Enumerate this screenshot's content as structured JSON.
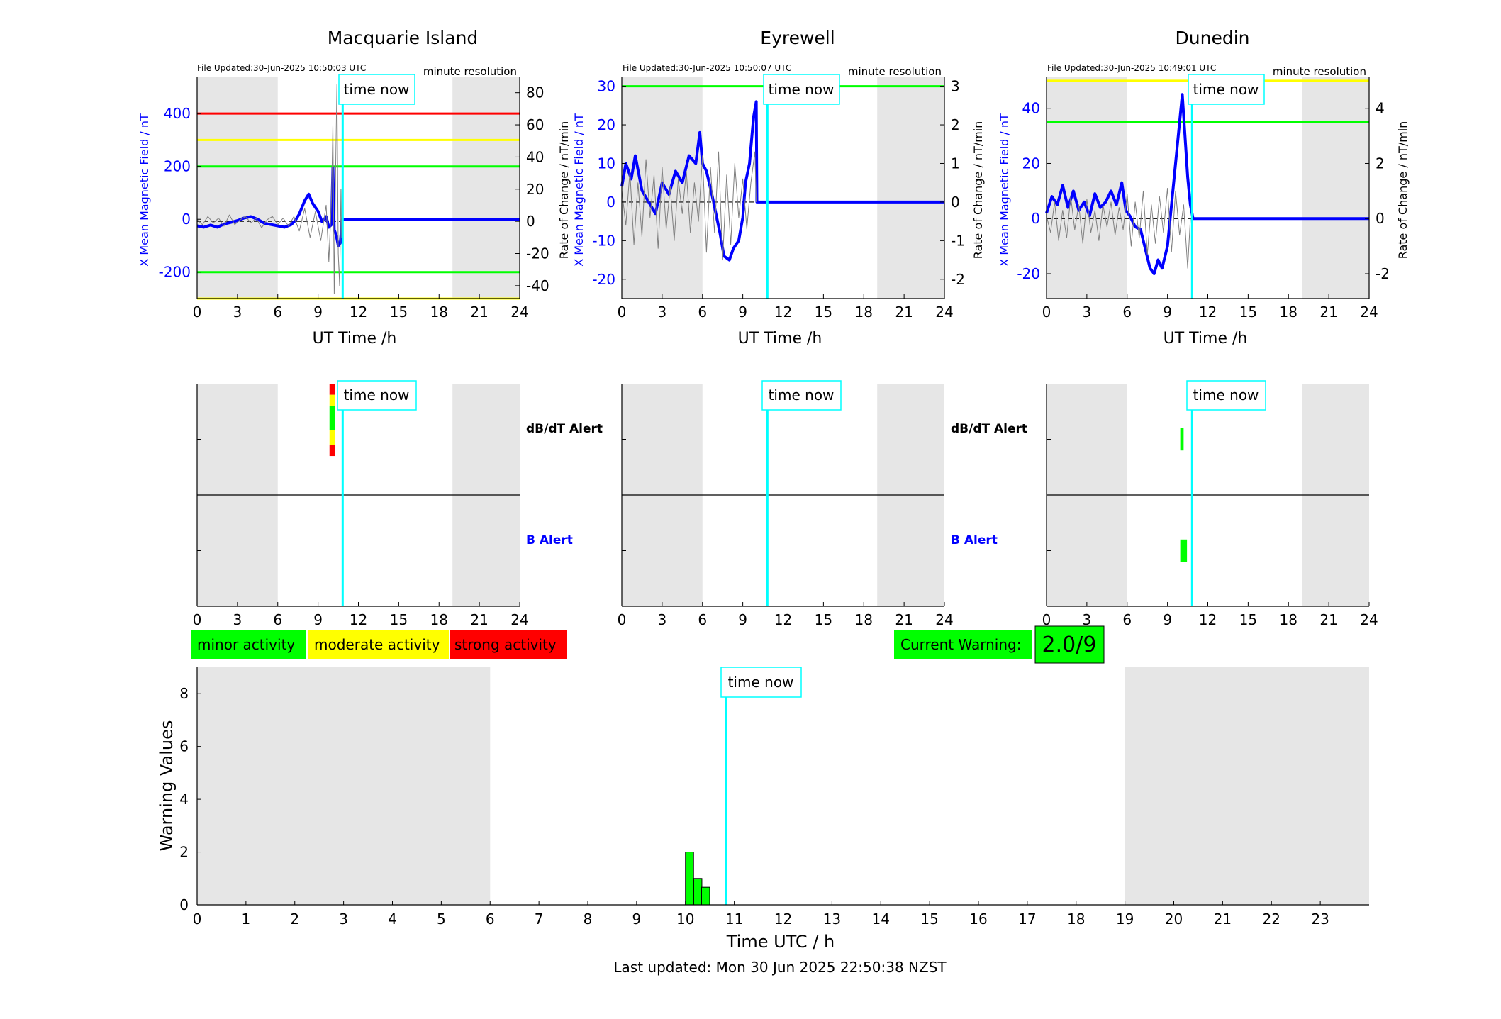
{
  "colors": {
    "field_line": "#0000ff",
    "rate_line": "#7f7f7f",
    "time_now": "#00ffff",
    "night_shade": "#e6e6e6",
    "minor": "#00ff00",
    "moderate": "#ffff00",
    "strong": "#ff0000"
  },
  "footer": {
    "last_updated": "Last updated: Mon 30 Jun 2025 22:50:38 NZST"
  },
  "warning": {
    "label": "Current Warning:",
    "value": "2.0/9"
  },
  "legend": {
    "minor": "minor activity",
    "moderate": "moderate activity",
    "strong": "strong activity"
  },
  "chart_data": [
    {
      "id": "macquarie",
      "type": "line",
      "title": "Macquarie Island",
      "file_updated": "File Updated:30-Jun-2025 10:50:03 UTC",
      "resolution": "minute resolution",
      "xlabel": "UT Time /h",
      "ylabel": "X Mean Magnetic Field / nT",
      "ylabel_right": "Rate of Change / nT/min",
      "time_now_label": "time now",
      "xlim": [
        0,
        24
      ],
      "xticks": [
        0,
        3,
        6,
        9,
        12,
        15,
        18,
        21,
        24
      ],
      "ylim": [
        -300,
        540
      ],
      "yticks": [
        -200,
        0,
        200,
        400
      ],
      "y2lim": [
        -48,
        90
      ],
      "y2ticks": [
        -40,
        -20,
        0,
        20,
        40,
        60,
        80
      ],
      "night_bands": [
        [
          0,
          6
        ],
        [
          19,
          24
        ]
      ],
      "time_now": 10.83,
      "thresholds": [
        {
          "value": 400,
          "color": "red"
        },
        {
          "value": 300,
          "color": "yellow"
        },
        {
          "value": 200,
          "color": "green"
        },
        {
          "value": -200,
          "color": "green"
        },
        {
          "value": -300,
          "color": "yellow"
        }
      ],
      "series": [
        {
          "x": [
            0,
            0.5,
            1,
            1.5,
            2,
            2.5,
            3,
            3.5,
            4,
            4.5,
            5,
            5.5,
            6,
            6.5,
            7,
            7.3,
            7.6,
            8,
            8.3,
            8.6,
            9,
            9.3,
            9.6,
            9.8,
            10,
            10.1,
            10.2,
            10.35,
            10.5,
            10.65,
            10.8,
            11,
            24
          ],
          "values": [
            -25,
            -30,
            -22,
            -30,
            -18,
            -12,
            -5,
            5,
            10,
            0,
            -15,
            -20,
            -25,
            -30,
            -20,
            -5,
            20,
            70,
            95,
            60,
            30,
            -10,
            10,
            -30,
            -20,
            195,
            -40,
            -60,
            -100,
            -90,
            0,
            0,
            0
          ]
        },
        {
          "axis": "right",
          "x": [
            0,
            0.4,
            0.8,
            1.2,
            1.6,
            2,
            2.4,
            2.8,
            3.2,
            3.6,
            4,
            4.4,
            4.8,
            5.2,
            5.6,
            6,
            6.4,
            6.8,
            7.2,
            7.6,
            8,
            8.4,
            8.8,
            9.2,
            9.6,
            9.8,
            10,
            10.1,
            10.2,
            10.3,
            10.4,
            10.5,
            10.6,
            10.7,
            10.75,
            10.8
          ],
          "values": [
            1,
            -2,
            3,
            -1,
            2,
            -3,
            4,
            -2,
            1,
            3,
            -1,
            2,
            -4,
            1,
            3,
            -2,
            2,
            -3,
            3,
            -6,
            8,
            -10,
            6,
            -12,
            10,
            -25,
            15,
            60,
            -45,
            30,
            85,
            -20,
            -40,
            20,
            -10,
            0
          ]
        }
      ]
    },
    {
      "id": "eyrewell",
      "type": "line",
      "title": "Eyrewell",
      "file_updated": "File Updated:30-Jun-2025 10:50:07 UTC",
      "resolution": "minute resolution",
      "xlabel": "UT Time /h",
      "ylabel": "X Mean Magnetic Field / nT",
      "ylabel_right": "Rate of Change / nT/min",
      "time_now_label": "time now",
      "xlim": [
        0,
        24
      ],
      "xticks": [
        0,
        3,
        6,
        9,
        12,
        15,
        18,
        21,
        24
      ],
      "ylim": [
        -25,
        32.5
      ],
      "yticks": [
        -20,
        -10,
        0,
        10,
        20,
        30
      ],
      "y2lim": [
        -2.5,
        3.25
      ],
      "y2ticks": [
        -2,
        -1,
        0,
        1,
        2,
        3
      ],
      "night_bands": [
        [
          0,
          6
        ],
        [
          19,
          24
        ]
      ],
      "time_now": 10.83,
      "thresholds": [
        {
          "value": 30,
          "color": "green"
        }
      ],
      "series": [
        {
          "x": [
            0,
            0.3,
            0.7,
            1,
            1.5,
            2,
            2.5,
            3,
            3.5,
            4,
            4.5,
            5,
            5.5,
            5.8,
            6,
            6.3,
            6.7,
            7,
            7.3,
            7.6,
            8,
            8.3,
            8.7,
            9,
            9.2,
            9.5,
            9.8,
            10,
            10.05,
            24
          ],
          "values": [
            4,
            10,
            6,
            12,
            3,
            0,
            -3,
            5,
            2,
            8,
            5,
            12,
            10,
            18,
            10,
            8,
            2,
            -3,
            -8,
            -14,
            -15,
            -12,
            -10,
            -4,
            5,
            10,
            22,
            26,
            0,
            0
          ]
        },
        {
          "axis": "right",
          "x": [
            0,
            0.3,
            0.6,
            0.9,
            1.2,
            1.5,
            1.8,
            2.1,
            2.4,
            2.7,
            3,
            3.3,
            3.6,
            3.9,
            4.2,
            4.5,
            4.8,
            5.1,
            5.4,
            5.7,
            6,
            6.3,
            6.6,
            6.9,
            7.2,
            7.5,
            7.8,
            8.1,
            8.4,
            8.7,
            9,
            9.3,
            9.6,
            9.9,
            10
          ],
          "values": [
            0.3,
            -0.6,
            0.8,
            -1.1,
            0.5,
            -0.9,
            1.1,
            -0.4,
            0.7,
            -1.2,
            0.9,
            -0.7,
            0.4,
            -1,
            0.6,
            -0.3,
            0.8,
            -0.8,
            0.5,
            -0.5,
            1.2,
            -1.3,
            0.9,
            -0.8,
            1.3,
            -1.5,
            0.7,
            -1.1,
            1,
            -0.4,
            0.6,
            -0.7,
            0.5,
            1.3,
            0
          ]
        }
      ]
    },
    {
      "id": "dunedin",
      "type": "line",
      "title": "Dunedin",
      "file_updated": "File Updated:30-Jun-2025 10:49:01 UTC",
      "resolution": "minute resolution",
      "xlabel": "UT Time /h",
      "ylabel": "X Mean Magnetic Field / nT",
      "ylabel_right": "Rate of Change / nT/min",
      "time_now_label": "time now",
      "xlim": [
        0,
        24
      ],
      "xticks": [
        0,
        3,
        6,
        9,
        12,
        15,
        18,
        21,
        24
      ],
      "ylim": [
        -29,
        51.5
      ],
      "yticks": [
        -20,
        0,
        20,
        40
      ],
      "y2lim": [
        -2.9,
        5.15
      ],
      "y2ticks": [
        -2,
        0,
        2,
        4
      ],
      "night_bands": [
        [
          0,
          6
        ],
        [
          19,
          24
        ]
      ],
      "time_now": 10.83,
      "thresholds": [
        {
          "value": 50,
          "color": "yellow"
        },
        {
          "value": 35,
          "color": "green"
        }
      ],
      "series": [
        {
          "x": [
            0,
            0.4,
            0.8,
            1.2,
            1.6,
            2,
            2.4,
            2.8,
            3.2,
            3.6,
            4,
            4.4,
            4.8,
            5.2,
            5.6,
            5.9,
            6.2,
            6.6,
            7,
            7.4,
            7.7,
            8,
            8.3,
            8.6,
            9,
            9.3,
            9.6,
            9.9,
            10.1,
            10.3,
            10.5,
            10.7,
            10.9,
            11,
            24
          ],
          "values": [
            2,
            8,
            5,
            12,
            4,
            10,
            3,
            6,
            1,
            9,
            4,
            6,
            10,
            5,
            13,
            3,
            1,
            -3,
            -4,
            -12,
            -18,
            -20,
            -15,
            -18,
            -10,
            5,
            20,
            35,
            45,
            30,
            15,
            5,
            0,
            0,
            0
          ]
        },
        {
          "axis": "right",
          "x": [
            0,
            0.3,
            0.6,
            0.9,
            1.2,
            1.5,
            1.8,
            2.1,
            2.4,
            2.7,
            3,
            3.3,
            3.6,
            3.9,
            4.2,
            4.5,
            4.8,
            5.1,
            5.4,
            5.7,
            6,
            6.3,
            6.6,
            6.9,
            7.2,
            7.5,
            7.8,
            8.1,
            8.4,
            8.7,
            9,
            9.3,
            9.6,
            9.9,
            10.2,
            10.5,
            10.7
          ],
          "values": [
            0.1,
            -0.5,
            0.6,
            -0.8,
            0.3,
            -0.7,
            0.8,
            -0.4,
            0.5,
            -0.9,
            0.7,
            -0.5,
            0.3,
            -0.8,
            0.5,
            -0.3,
            0.6,
            -0.6,
            0.4,
            -0.4,
            0.9,
            -1,
            0.6,
            -0.7,
            1,
            -1.3,
            0.5,
            -0.9,
            0.8,
            -0.5,
            1.1,
            -1.2,
            1,
            -0.6,
            0.5,
            -1.8,
            0
          ]
        }
      ]
    },
    {
      "id": "alerts-macquarie",
      "type": "heatmap",
      "labels": [
        "dB/dT Alert",
        "B Alert"
      ],
      "time_now_label": "time now",
      "xlim": [
        0,
        24
      ],
      "xticks": [
        0,
        3,
        6,
        9,
        12,
        15,
        18,
        21,
        24
      ],
      "night_bands": [
        [
          0,
          6
        ],
        [
          19,
          24
        ]
      ],
      "time_now": 10.83,
      "blocks": [
        {
          "row": "dB/dT Alert",
          "x0": 9.85,
          "x1": 10.25,
          "level": "strong",
          "frac": [
            0.0,
            0.1
          ]
        },
        {
          "row": "dB/dT Alert",
          "x0": 9.85,
          "x1": 10.25,
          "level": "moderate",
          "frac": [
            0.1,
            0.2
          ]
        },
        {
          "row": "dB/dT Alert",
          "x0": 9.85,
          "x1": 10.25,
          "level": "minor",
          "frac": [
            0.2,
            0.42
          ]
        },
        {
          "row": "dB/dT Alert",
          "x0": 9.85,
          "x1": 10.25,
          "level": "moderate",
          "frac": [
            0.42,
            0.55
          ]
        },
        {
          "row": "dB/dT Alert",
          "x0": 9.85,
          "x1": 10.25,
          "level": "strong",
          "frac": [
            0.55,
            0.65
          ]
        }
      ]
    },
    {
      "id": "alerts-eyrewell",
      "type": "heatmap",
      "labels": [
        "dB/dT Alert",
        "B Alert"
      ],
      "time_now_label": "time now",
      "xlim": [
        0,
        24
      ],
      "xticks": [
        0,
        3,
        6,
        9,
        12,
        15,
        18,
        21,
        24
      ],
      "night_bands": [
        [
          0,
          6
        ],
        [
          19,
          24
        ]
      ],
      "time_now": 10.83,
      "blocks": []
    },
    {
      "id": "alerts-dunedin",
      "type": "heatmap",
      "labels": [
        "dB/dT Alert",
        "B Alert"
      ],
      "time_now_label": "time now",
      "xlim": [
        0,
        24
      ],
      "xticks": [
        0,
        3,
        6,
        9,
        12,
        15,
        18,
        21,
        24
      ],
      "night_bands": [
        [
          0,
          6
        ],
        [
          19,
          24
        ]
      ],
      "time_now": 10.83,
      "blocks": [
        {
          "row": "dB/dT Alert",
          "x0": 9.95,
          "x1": 10.2,
          "level": "minor",
          "frac": [
            0.4,
            0.6
          ]
        },
        {
          "row": "B Alert",
          "x0": 9.95,
          "x1": 10.45,
          "level": "minor",
          "frac": [
            0.4,
            0.6
          ]
        }
      ]
    },
    {
      "id": "warnings",
      "type": "bar",
      "xlabel": "Time UTC / h",
      "ylabel": "Warning Values",
      "time_now_label": "time now",
      "xlim": [
        0,
        24
      ],
      "xticks": [
        0,
        1,
        2,
        3,
        4,
        5,
        6,
        7,
        8,
        9,
        10,
        11,
        12,
        13,
        14,
        15,
        16,
        17,
        18,
        19,
        20,
        21,
        22,
        23
      ],
      "ylim": [
        0,
        9
      ],
      "yticks": [
        0,
        2,
        4,
        6,
        8
      ],
      "night_bands": [
        [
          0,
          6
        ],
        [
          19,
          24
        ]
      ],
      "time_now": 10.83,
      "bars": [
        {
          "x": 10,
          "value": 2
        },
        {
          "x": 10.17,
          "value": 1
        },
        {
          "x": 10.33,
          "value": 0.667
        }
      ]
    }
  ]
}
